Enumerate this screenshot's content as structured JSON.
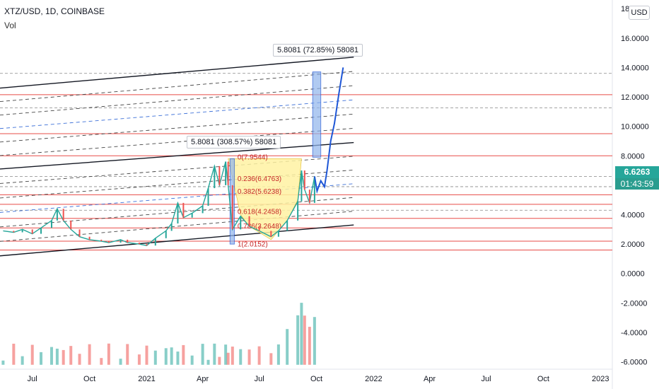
{
  "header": {
    "symbol": "XTZ/USD, 1D, COINBASE",
    "indicator": "Vol",
    "currency_button": "USD"
  },
  "price_badge": {
    "price": "6.6263",
    "countdown": "01:43:59",
    "color": "#26a69a"
  },
  "measures": [
    {
      "label": "5.8081 (72.85%) 58081"
    },
    {
      "label": "5.8081 (308.57%) 58081"
    }
  ],
  "fib_labels": [
    "0(7.9544)",
    "0.236(6.4763)",
    "0.382(5.6238)",
    "0.618(4.2458)",
    "0.786(3.2648)",
    "1(2.0152)"
  ],
  "colors": {
    "up": "#26a69a",
    "down": "#ef5350",
    "projection": "#1e56d6",
    "resistance": "#e53935",
    "channel": "#131722",
    "measure_fill": "#8fb4ec",
    "cup_fill": "#fff3a3"
  },
  "chart_data": {
    "type": "line",
    "title": "XTZ/USD, 1D, COINBASE",
    "ylim": [
      -6.5,
      18.2
    ],
    "y_ticks": [
      "18.0000",
      "16.0000",
      "14.0000",
      "12.0000",
      "10.0000",
      "8.0000",
      "6.0000",
      "4.0000",
      "2.0000",
      "0.0000",
      "-2.0000",
      "-4.0000",
      "-6.0000"
    ],
    "y_tick_values": [
      18,
      16,
      14,
      12,
      10,
      8,
      6,
      4,
      2,
      0,
      -2,
      -4,
      -6
    ],
    "x_ticks": [
      "Jul",
      "Oct",
      "2021",
      "Apr",
      "Jul",
      "Oct",
      "2022",
      "Apr",
      "Jul",
      "Oct",
      "2023"
    ],
    "x_tick_values": [
      "2020-07-01",
      "2020-10-01",
      "2021-01-01",
      "2021-04-01",
      "2021-07-01",
      "2021-10-01",
      "2022-01-01",
      "2022-04-01",
      "2022-07-01",
      "2022-10-01",
      "2023-01-01"
    ],
    "x_range": [
      "2020-05-10",
      "2023-01-20"
    ],
    "series": [
      {
        "values": [
          [
            "2020-05-15",
            2.9
          ],
          [
            "2020-06-01",
            2.8
          ],
          [
            "2020-06-15",
            3.0
          ],
          [
            "2020-07-01",
            2.7
          ],
          [
            "2020-07-15",
            3.1
          ],
          [
            "2020-08-01",
            3.6
          ],
          [
            "2020-08-10",
            4.4
          ],
          [
            "2020-08-20",
            3.6
          ],
          [
            "2020-09-01",
            3.0
          ],
          [
            "2020-09-15",
            2.5
          ],
          [
            "2020-10-01",
            2.3
          ],
          [
            "2020-10-20",
            2.2
          ],
          [
            "2020-11-01",
            2.1
          ],
          [
            "2020-11-20",
            2.3
          ],
          [
            "2020-12-01",
            2.1
          ],
          [
            "2020-12-20",
            2.0
          ],
          [
            "2021-01-01",
            1.9
          ],
          [
            "2021-01-15",
            2.4
          ],
          [
            "2021-02-01",
            2.9
          ],
          [
            "2021-02-10",
            3.4
          ],
          [
            "2021-02-20",
            4.8
          ],
          [
            "2021-03-01",
            3.8
          ],
          [
            "2021-03-15",
            4.1
          ],
          [
            "2021-04-01",
            4.6
          ],
          [
            "2021-04-10",
            5.8
          ],
          [
            "2021-04-20",
            7.3
          ],
          [
            "2021-04-28",
            6.0
          ],
          [
            "2021-05-08",
            7.6
          ],
          [
            "2021-05-12",
            6.0
          ],
          [
            "2021-05-19",
            3.0
          ],
          [
            "2021-06-01",
            3.9
          ],
          [
            "2021-06-15",
            3.2
          ],
          [
            "2021-07-01",
            2.9
          ],
          [
            "2021-07-20",
            2.5
          ],
          [
            "2021-08-01",
            2.9
          ],
          [
            "2021-08-15",
            3.6
          ],
          [
            "2021-09-01",
            4.9
          ],
          [
            "2021-09-07",
            7.0
          ],
          [
            "2021-09-12",
            5.7
          ],
          [
            "2021-09-20",
            4.8
          ],
          [
            "2021-09-28",
            6.6
          ]
        ]
      }
    ],
    "projection": [
      [
        "2021-09-28",
        6.6
      ],
      [
        "2021-10-02",
        5.6
      ],
      [
        "2021-10-08",
        6.3
      ],
      [
        "2021-10-14",
        5.9
      ],
      [
        "2021-10-18",
        7.0
      ],
      [
        "2021-10-24",
        9.0
      ],
      [
        "2021-10-30",
        10.2
      ],
      [
        "2021-11-06",
        12.2
      ],
      [
        "2021-11-11",
        13.5
      ],
      [
        "2021-11-13",
        14.0
      ]
    ],
    "volume_ylim": [
      0,
      1
    ],
    "horizontal_levels": [
      13.6,
      12.15,
      11.25,
      9.5,
      8.0,
      6.6,
      5.9,
      5.35,
      4.7,
      4.3,
      3.75,
      3.1,
      2.2,
      1.6
    ],
    "channel": {
      "upper": [
        [
          "2020-05-10",
          12.6
        ],
        [
          "2021-11-30",
          14.7
        ]
      ],
      "middle": [
        [
          "2020-05-10",
          7.1
        ],
        [
          "2021-11-30",
          8.9
        ]
      ],
      "lower": [
        [
          "2020-05-10",
          1.2
        ],
        [
          "2021-11-30",
          3.3
        ]
      ]
    },
    "annotations": [
      "5.8081 (72.85%) 58081",
      "5.8081 (308.57%) 58081"
    ]
  }
}
